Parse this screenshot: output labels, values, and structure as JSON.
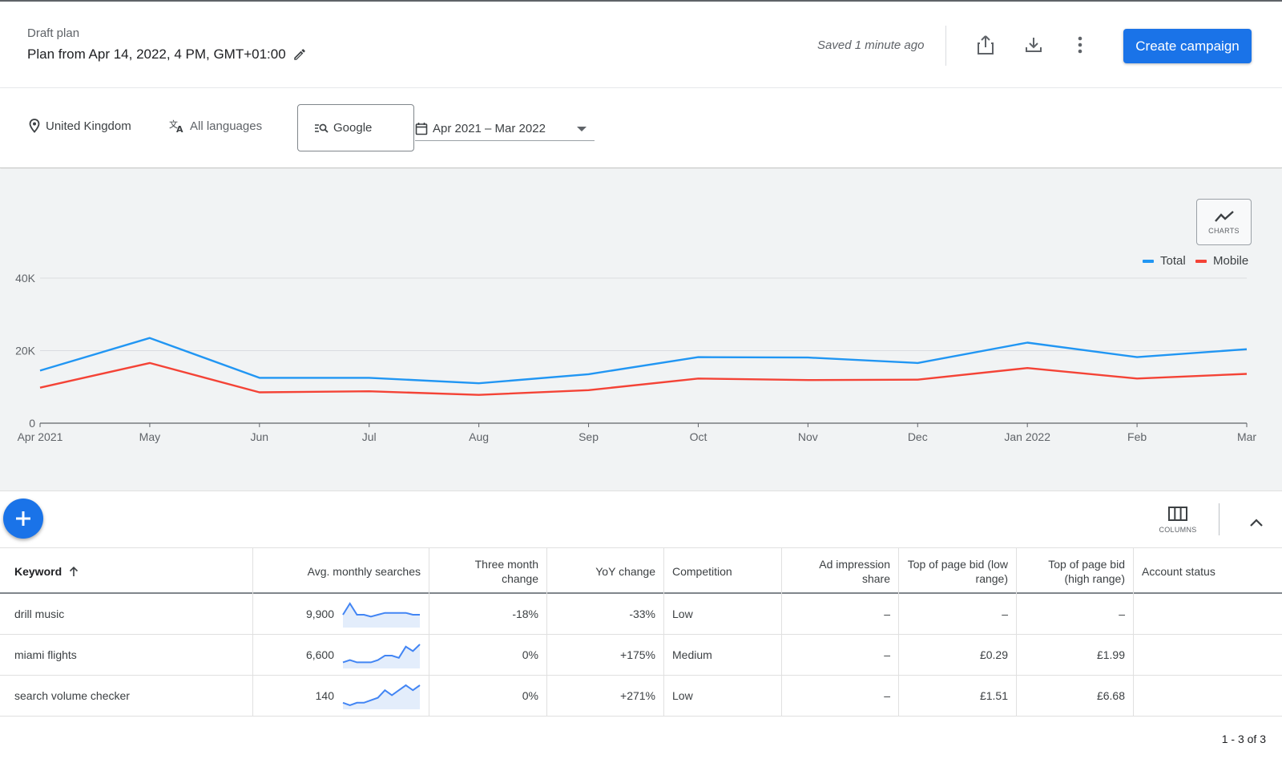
{
  "header": {
    "subtitle": "Draft plan",
    "title": "Plan from Apr 14, 2022, 4 PM, GMT+01:00",
    "saved_status": "Saved 1 minute ago",
    "create_label": "Create campaign",
    "accent": "#1a73e8"
  },
  "filters": {
    "location": "United Kingdom",
    "language": "All languages",
    "network": "Google",
    "date_range": "Apr 2021 – Mar 2022"
  },
  "chart_toggle_label": "CHARTS",
  "chart_data": {
    "type": "line",
    "x": [
      "Apr 2021",
      "May",
      "Jun",
      "Jul",
      "Aug",
      "Sep",
      "Oct",
      "Nov",
      "Dec",
      "Jan 2022",
      "Feb",
      "Mar"
    ],
    "series": [
      {
        "name": "Total",
        "color": "#2196f3",
        "values": [
          14500,
          23500,
          12500,
          12500,
          11000,
          13500,
          18200,
          18100,
          16600,
          22200,
          18200,
          20400
        ]
      },
      {
        "name": "Mobile",
        "color": "#f44336",
        "values": [
          9800,
          16600,
          8500,
          8800,
          7800,
          9100,
          12300,
          11900,
          12000,
          15200,
          12300,
          13600
        ]
      }
    ],
    "y_ticks": [
      "0",
      "20K",
      "40K"
    ],
    "ylim": [
      0,
      40000
    ],
    "legend_position": "top-right",
    "grid": true
  },
  "toolbar": {
    "columns_label": "COLUMNS"
  },
  "table": {
    "headers": {
      "keyword": "Keyword",
      "avg": "Avg. monthly searches",
      "three_month": "Three month change",
      "yoy": "YoY change",
      "competition": "Competition",
      "impression": "Ad impression share",
      "bid_low": "Top of page bid (low range)",
      "bid_high": "Top of page bid (high range)",
      "account": "Account status"
    },
    "rows": [
      {
        "keyword": "drill music",
        "avg": "9,900",
        "three_month": "-18%",
        "yoy": "-33%",
        "competition": "Low",
        "impression": "–",
        "bid_low": "–",
        "bid_high": "–",
        "account": "",
        "trend": [
          6,
          12,
          6,
          6,
          5,
          6,
          7,
          7,
          7,
          7,
          6,
          6
        ]
      },
      {
        "keyword": "miami flights",
        "avg": "6,600",
        "three_month": "0%",
        "yoy": "+175%",
        "competition": "Medium",
        "impression": "–",
        "bid_low": "£0.29",
        "bid_high": "£1.99",
        "account": "",
        "trend": [
          2,
          3,
          2,
          2,
          2,
          3,
          5,
          5,
          4,
          9,
          7,
          10
        ]
      },
      {
        "keyword": "search volume checker",
        "avg": "140",
        "three_month": "0%",
        "yoy": "+271%",
        "competition": "Low",
        "impression": "–",
        "bid_low": "£1.51",
        "bid_high": "£6.68",
        "account": "",
        "trend": [
          2,
          1,
          2,
          2,
          3,
          4,
          7,
          5,
          7,
          9,
          7,
          9
        ]
      }
    ],
    "pagination": "1 - 3 of 3"
  }
}
